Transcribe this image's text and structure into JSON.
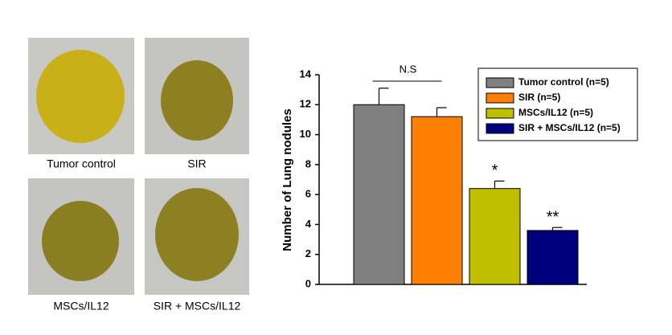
{
  "photos": [
    {
      "label": "Tumor control"
    },
    {
      "label": "SIR"
    },
    {
      "label": "MSCs/IL12"
    },
    {
      "label": "SIR + MSCs/IL12"
    }
  ],
  "chart_data": {
    "type": "bar",
    "ylabel": "Number of Lung nodules",
    "series": [
      {
        "name": "Tumor control (n=5)",
        "color": "#808080",
        "values": [
          12
        ],
        "errors": [
          1.1
        ]
      },
      {
        "name": "SIR (n=5)",
        "color": "#ff7f00",
        "values": [
          11.2
        ],
        "errors": [
          0.6
        ]
      },
      {
        "name": "MSCs/IL12 (n=5)",
        "color": "#bfbf00",
        "values": [
          6.4
        ],
        "errors": [
          0.5
        ],
        "annotation": "*"
      },
      {
        "name": "SIR + MSCs/IL12 (n=5)",
        "color": "#00007f",
        "values": [
          3.6
        ],
        "errors": [
          0.2
        ],
        "annotation": "**"
      }
    ],
    "annotations": [
      "N.S"
    ],
    "ylim": [
      0,
      14
    ],
    "yticks": [
      0,
      2,
      4,
      6,
      8,
      10,
      12,
      14
    ],
    "legend": "upper right"
  }
}
